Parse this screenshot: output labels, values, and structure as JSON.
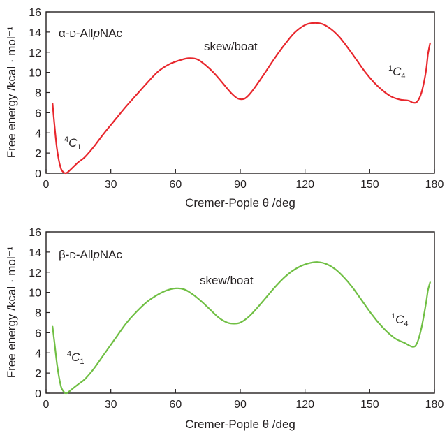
{
  "chart_data": [
    {
      "type": "line",
      "title": "α-D-AllpNAc",
      "title_parts": {
        "prefix": "α-",
        "small_caps": "D",
        "mid": "-All",
        "italic": "p",
        "suffix": "NAc"
      },
      "xlabel": "Cremer-Pople θ /deg",
      "ylabel": "Free energy /kcal · mol⁻¹",
      "xlim": [
        0,
        180
      ],
      "ylim": [
        0,
        16
      ],
      "xticks": [
        0,
        30,
        60,
        90,
        120,
        150,
        180
      ],
      "yticks": [
        0,
        2,
        4,
        6,
        8,
        10,
        12,
        14,
        16
      ],
      "grid": false,
      "color": "#e8272d",
      "annotations": {
        "c1": {
          "sup": "4",
          "base": "C",
          "sub": "1"
        },
        "skew": "skew/boat",
        "c4": {
          "sup": "1",
          "base": "C",
          "sub": "4"
        }
      },
      "series": [
        {
          "values": [
            [
              3,
              6.9
            ],
            [
              4,
              4.5
            ],
            [
              5,
              2.5
            ],
            [
              6,
              1.2
            ],
            [
              7,
              0.4
            ],
            [
              8,
              0.1
            ],
            [
              9,
              0.0
            ],
            [
              10,
              0.1
            ],
            [
              12,
              0.5
            ],
            [
              15,
              1.1
            ],
            [
              18,
              1.6
            ],
            [
              22,
              2.6
            ],
            [
              27,
              4.0
            ],
            [
              32,
              5.3
            ],
            [
              37,
              6.6
            ],
            [
              42,
              7.8
            ],
            [
              47,
              9.0
            ],
            [
              52,
              10.1
            ],
            [
              57,
              10.8
            ],
            [
              62,
              11.2
            ],
            [
              66,
              11.4
            ],
            [
              70,
              11.3
            ],
            [
              74,
              10.7
            ],
            [
              78,
              9.9
            ],
            [
              82,
              8.9
            ],
            [
              86,
              7.9
            ],
            [
              89,
              7.4
            ],
            [
              92,
              7.4
            ],
            [
              95,
              8.0
            ],
            [
              100,
              9.5
            ],
            [
              105,
              11.1
            ],
            [
              110,
              12.6
            ],
            [
              115,
              13.9
            ],
            [
              120,
              14.7
            ],
            [
              124,
              14.9
            ],
            [
              128,
              14.8
            ],
            [
              132,
              14.3
            ],
            [
              136,
              13.5
            ],
            [
              140,
              12.4
            ],
            [
              144,
              11.2
            ],
            [
              148,
              10.0
            ],
            [
              152,
              9.0
            ],
            [
              156,
              8.2
            ],
            [
              160,
              7.6
            ],
            [
              164,
              7.3
            ],
            [
              168,
              7.2
            ],
            [
              170,
              7.0
            ],
            [
              172,
              7.1
            ],
            [
              174,
              8.0
            ],
            [
              176,
              10.0
            ],
            [
              177,
              11.8
            ],
            [
              178,
              12.9
            ]
          ]
        }
      ]
    },
    {
      "type": "line",
      "title": "β-D-AllpNAc",
      "title_parts": {
        "prefix": "β-",
        "small_caps": "D",
        "mid": "-All",
        "italic": "p",
        "suffix": "NAc"
      },
      "xlabel": "Cremer-Pople θ /deg",
      "ylabel": "Free energy /kcal · mol⁻¹",
      "xlim": [
        0,
        180
      ],
      "ylim": [
        0,
        16
      ],
      "xticks": [
        0,
        30,
        60,
        90,
        120,
        150,
        180
      ],
      "yticks": [
        0,
        2,
        4,
        6,
        8,
        10,
        12,
        14,
        16
      ],
      "grid": false,
      "color": "#70bf44",
      "annotations": {
        "c1": {
          "sup": "4",
          "base": "C",
          "sub": "1"
        },
        "skew": "skew/boat",
        "c4": {
          "sup": "1",
          "base": "C",
          "sub": "4"
        }
      },
      "series": [
        {
          "values": [
            [
              3,
              6.6
            ],
            [
              4,
              4.8
            ],
            [
              5,
              3.0
            ],
            [
              6,
              1.6
            ],
            [
              7,
              0.6
            ],
            [
              8,
              0.2
            ],
            [
              9,
              0.0
            ],
            [
              10,
              0.05
            ],
            [
              12,
              0.4
            ],
            [
              15,
              0.9
            ],
            [
              18,
              1.4
            ],
            [
              22,
              2.4
            ],
            [
              27,
              3.9
            ],
            [
              32,
              5.4
            ],
            [
              37,
              6.9
            ],
            [
              42,
              8.1
            ],
            [
              47,
              9.1
            ],
            [
              52,
              9.8
            ],
            [
              56,
              10.2
            ],
            [
              60,
              10.4
            ],
            [
              64,
              10.3
            ],
            [
              68,
              9.8
            ],
            [
              72,
              9.1
            ],
            [
              76,
              8.3
            ],
            [
              80,
              7.5
            ],
            [
              84,
              7.0
            ],
            [
              87,
              6.9
            ],
            [
              90,
              7.0
            ],
            [
              94,
              7.6
            ],
            [
              98,
              8.5
            ],
            [
              102,
              9.5
            ],
            [
              106,
              10.5
            ],
            [
              110,
              11.4
            ],
            [
              114,
              12.1
            ],
            [
              118,
              12.6
            ],
            [
              122,
              12.9
            ],
            [
              126,
              13.0
            ],
            [
              130,
              12.8
            ],
            [
              134,
              12.3
            ],
            [
              138,
              11.5
            ],
            [
              142,
              10.5
            ],
            [
              146,
              9.3
            ],
            [
              150,
              8.1
            ],
            [
              154,
              7.0
            ],
            [
              158,
              6.1
            ],
            [
              162,
              5.4
            ],
            [
              166,
              5.0
            ],
            [
              170,
              4.6
            ],
            [
              172,
              5.0
            ],
            [
              174,
              6.5
            ],
            [
              176,
              8.8
            ],
            [
              177,
              10.2
            ],
            [
              178,
              11.0
            ]
          ]
        }
      ]
    }
  ]
}
